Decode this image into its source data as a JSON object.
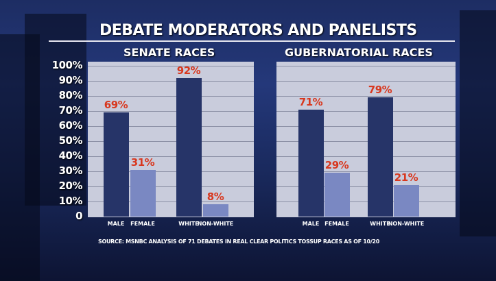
{
  "chart_data": [
    {
      "type": "bar",
      "title": "SENATE RACES",
      "categories": [
        "MALE",
        "FEMALE",
        "WHITE",
        "NON-WHITE"
      ],
      "values": [
        69,
        31,
        92,
        8
      ],
      "labels": [
        "69%",
        "31%",
        "92%",
        "8%"
      ],
      "ylim": [
        0,
        100
      ],
      "yticks": [
        "0",
        "10%",
        "20%",
        "30%",
        "40%",
        "50%",
        "60%",
        "70%",
        "80%",
        "90%",
        "100%"
      ],
      "colors": [
        "#263468",
        "#7a88c2",
        "#263468",
        "#7a88c2"
      ]
    },
    {
      "type": "bar",
      "title": "GUBERNATORIAL RACES",
      "categories": [
        "MALE",
        "FEMALE",
        "WHITE",
        "NON-WHITE"
      ],
      "values": [
        71,
        29,
        79,
        21
      ],
      "labels": [
        "71%",
        "29%",
        "79%",
        "21%"
      ],
      "ylim": [
        0,
        100
      ],
      "colors": [
        "#263468",
        "#7a88c2",
        "#263468",
        "#7a88c2"
      ]
    }
  ],
  "title": "DEBATE MODERATORS AND PANELISTS",
  "source": "SOURCE: MSNBC ANALYSIS OF 71 DEBATES IN REAL CLEAR POLITICS TOSSUP RACES AS OF 10/20"
}
